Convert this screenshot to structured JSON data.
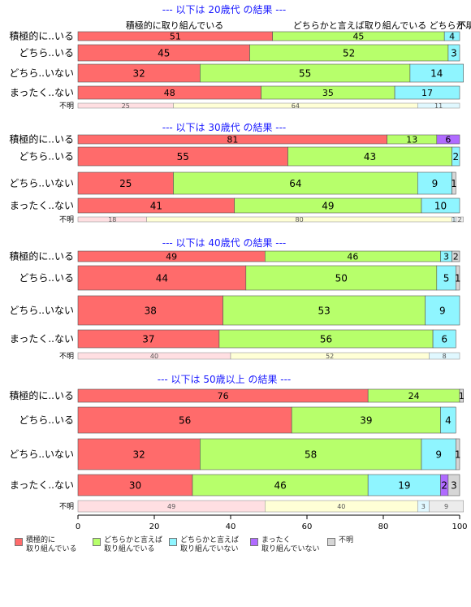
{
  "chart_data": {
    "type": "bar",
    "orientation": "horizontal",
    "stacked": true,
    "xlim": [
      0,
      100
    ],
    "x_ticks": [
      0,
      20,
      40,
      60,
      80,
      100
    ],
    "series_names": [
      "積極的に\n取り組んでいる",
      "どちらかと言えば\n取り組んでいる",
      "どちらかと言えば\n取り組んでいない",
      "まったく\n取り組んでいない",
      "不明"
    ],
    "colors": [
      "#ff6b6b",
      "#b7ff6b",
      "#8ff5ff",
      "#b06bff",
      "#d6d6d6"
    ],
    "colors_light": [
      "#ffdfe2",
      "#ffffd6",
      "#e0f8ff",
      "#ecdcff",
      "#ececec"
    ],
    "top_labels": [
      "積極的に取り組んでいる",
      "どちらかと言えば取り組んでいる",
      "どちらか…",
      "不明"
    ],
    "panels": [
      {
        "title": "--- 以下は 20歳代 の結果 ---",
        "rows": [
          {
            "label": "積極的に..いる",
            "values": [
              51,
              45,
              4,
              0,
              0
            ]
          },
          {
            "label": "どちら..いる",
            "values": [
              45,
              52,
              3,
              0,
              0
            ]
          },
          {
            "label": "どちら..いない",
            "values": [
              32,
              55,
              14,
              0,
              0
            ]
          },
          {
            "label": "まったく..ない",
            "values": [
              48,
              35,
              17,
              0,
              0
            ]
          },
          {
            "label": "不明",
            "values": [
              25,
              64,
              11,
              0,
              0
            ],
            "minor": true
          }
        ]
      },
      {
        "title": "--- 以下は 30歳代 の結果 ---",
        "rows": [
          {
            "label": "積極的に..いる",
            "values": [
              81,
              13,
              0,
              6,
              0
            ]
          },
          {
            "label": "どちら..いる",
            "values": [
              55,
              43,
              2,
              0,
              0
            ]
          },
          {
            "label": "どちら..いない",
            "values": [
              25,
              64,
              9,
              0,
              1
            ]
          },
          {
            "label": "まったく..ない",
            "values": [
              41,
              49,
              10,
              0,
              0
            ]
          },
          {
            "label": "不明",
            "values": [
              18,
              80,
              1,
              0,
              2
            ],
            "minor": true
          }
        ]
      },
      {
        "title": "--- 以下は 40歳代 の結果 ---",
        "rows": [
          {
            "label": "積極的に..いる",
            "values": [
              49,
              46,
              3,
              0,
              2
            ]
          },
          {
            "label": "どちら..いる",
            "values": [
              44,
              50,
              5,
              0,
              1
            ]
          },
          {
            "label": "どちら..いない",
            "values": [
              38,
              53,
              9,
              0,
              0
            ]
          },
          {
            "label": "まったく..ない",
            "values": [
              37,
              56,
              6,
              0,
              0
            ]
          },
          {
            "label": "不明",
            "values": [
              40,
              52,
              8,
              0,
              0
            ],
            "minor": true
          }
        ]
      },
      {
        "title": "--- 以下は 50歳以上 の結果 ---",
        "rows": [
          {
            "label": "積極的に..いる",
            "values": [
              76,
              24,
              0,
              0,
              1
            ]
          },
          {
            "label": "どちら..いる",
            "values": [
              56,
              39,
              4,
              0,
              0
            ]
          },
          {
            "label": "どちら..いない",
            "values": [
              32,
              58,
              9,
              0,
              1
            ]
          },
          {
            "label": "まったく..ない",
            "values": [
              30,
              46,
              19,
              2,
              3
            ]
          },
          {
            "label": "不明",
            "values": [
              49,
              40,
              3,
              0,
              9
            ],
            "minor": true
          }
        ]
      }
    ]
  }
}
